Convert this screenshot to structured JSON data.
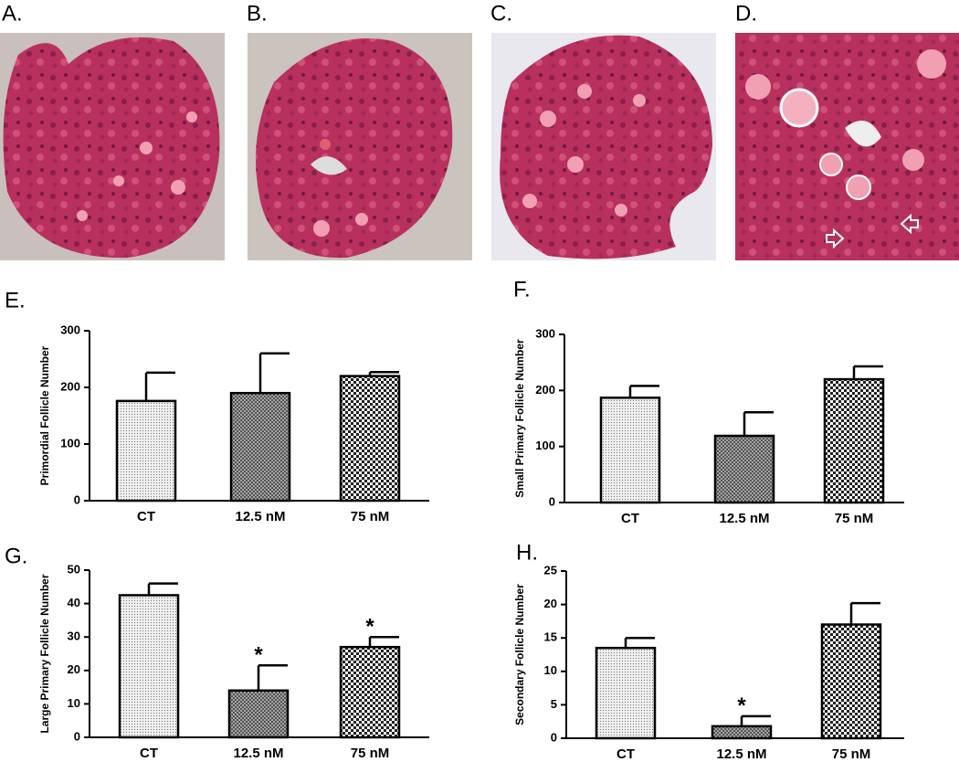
{
  "image_panels": [
    {
      "label": "A."
    },
    {
      "label": "B."
    },
    {
      "label": "C."
    },
    {
      "label": "D."
    }
  ],
  "chart_data": [
    {
      "type": "bar",
      "panel_label": "E.",
      "ylabel": "Primordial Follicle Number",
      "categories": [
        "CT",
        "12.5 nM",
        "75 nM"
      ],
      "values": [
        176,
        190,
        220
      ],
      "errors": [
        50,
        70,
        7
      ],
      "fills": [
        "dots",
        "crosshatch",
        "checker"
      ],
      "ylim": [
        0,
        300
      ],
      "yticks": [
        0,
        100,
        200,
        300
      ]
    },
    {
      "type": "bar",
      "panel_label": "F.",
      "ylabel": "Small  Primary Follicle Number",
      "categories": [
        "CT",
        "12.5 nM",
        "75 nM"
      ],
      "values": [
        187,
        119,
        220
      ],
      "errors": [
        21,
        42,
        23
      ],
      "fills": [
        "dots",
        "crosshatch",
        "checker"
      ],
      "ylim": [
        0,
        300
      ],
      "yticks": [
        0,
        100,
        200,
        300
      ]
    },
    {
      "type": "bar",
      "panel_label": "G.",
      "ylabel": "Large  Primary Follicle Number",
      "categories": [
        "CT",
        "12.5 nM",
        "75 nM"
      ],
      "values": [
        42.5,
        14,
        27
      ],
      "errors": [
        3.5,
        7.5,
        3
      ],
      "annotations": [
        null,
        "*",
        "*"
      ],
      "fills": [
        "dots",
        "crosshatch",
        "checker"
      ],
      "ylim": [
        0,
        50
      ],
      "yticks": [
        0,
        10,
        20,
        30,
        40,
        50
      ]
    },
    {
      "type": "bar",
      "panel_label": "H.",
      "ylabel": "Secondary Follicle Number",
      "categories": [
        "CT",
        "12.5 nM",
        "75 nM"
      ],
      "values": [
        13.5,
        1.8,
        17
      ],
      "errors": [
        1.5,
        1.5,
        3.2
      ],
      "annotations": [
        null,
        "*",
        null
      ],
      "fills": [
        "dots",
        "crosshatch",
        "checker"
      ],
      "ylim": [
        0,
        25
      ],
      "yticks": [
        0,
        5,
        10,
        15,
        20,
        25
      ]
    }
  ]
}
